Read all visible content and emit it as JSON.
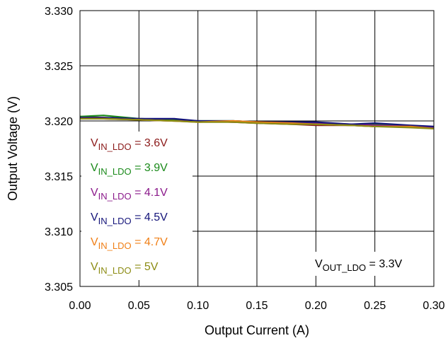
{
  "chart_data": {
    "type": "line",
    "xlabel": "Output Current (A)",
    "ylabel": "Output Voltage (V)",
    "xlim": [
      0,
      0.3
    ],
    "ylim": [
      3.305,
      3.33
    ],
    "x_ticks": [
      "0.00",
      "0.05",
      "0.10",
      "0.15",
      "0.20",
      "0.25",
      "0.30"
    ],
    "y_ticks": [
      "3.305",
      "3.310",
      "3.315",
      "3.320",
      "3.325",
      "3.330"
    ],
    "grid": true,
    "legend_position": "left",
    "annotation": {
      "main": "V",
      "sub": "OUT_LDO",
      "suffix": " = 3.3V"
    },
    "x": [
      0.0,
      0.02,
      0.05,
      0.08,
      0.1,
      0.13,
      0.15,
      0.18,
      0.2,
      0.23,
      0.25,
      0.28,
      0.3
    ],
    "series": [
      {
        "name": "V",
        "sub": "IN_LDO",
        "suffix": " = 3.6V",
        "color": "#8B1A1A",
        "values": [
          3.3204,
          3.3203,
          3.3202,
          3.3201,
          3.32,
          3.3199,
          3.3198,
          3.3197,
          3.3196,
          3.3196,
          3.3195,
          3.3195,
          3.3194
        ]
      },
      {
        "name": "V",
        "sub": "IN_LDO",
        "suffix": " = 3.9V",
        "color": "#1A8A1A",
        "values": [
          3.3204,
          3.3205,
          3.3202,
          3.3201,
          3.32,
          3.32,
          3.3199,
          3.3198,
          3.3197,
          3.3196,
          3.3197,
          3.3195,
          3.3194
        ]
      },
      {
        "name": "V",
        "sub": "IN_LDO",
        "suffix": " = 4.1V",
        "color": "#8B1A8B",
        "values": [
          3.3203,
          3.3203,
          3.3201,
          3.32,
          3.32,
          3.3199,
          3.3199,
          3.3198,
          3.3198,
          3.3197,
          3.3196,
          3.3195,
          3.3194
        ]
      },
      {
        "name": "V",
        "sub": "IN_LDO",
        "suffix": " = 4.5V",
        "color": "#14147A",
        "values": [
          3.3203,
          3.3203,
          3.3202,
          3.3202,
          3.32,
          3.32,
          3.3199,
          3.3199,
          3.3199,
          3.3197,
          3.3198,
          3.3196,
          3.3195
        ]
      },
      {
        "name": "V",
        "sub": "IN_LDO",
        "suffix": " = 4.7V",
        "color": "#F07F16",
        "values": [
          3.3202,
          3.3202,
          3.3201,
          3.32,
          3.3199,
          3.32,
          3.3199,
          3.3198,
          3.3197,
          3.3196,
          3.3195,
          3.3195,
          3.3193
        ]
      },
      {
        "name": "V",
        "sub": "IN_LDO",
        "suffix": " = 5V",
        "color": "#8C8C14",
        "values": [
          3.3202,
          3.3202,
          3.3201,
          3.32,
          3.3199,
          3.3199,
          3.3198,
          3.3197,
          3.3197,
          3.3196,
          3.3195,
          3.3194,
          3.3193
        ]
      }
    ]
  }
}
